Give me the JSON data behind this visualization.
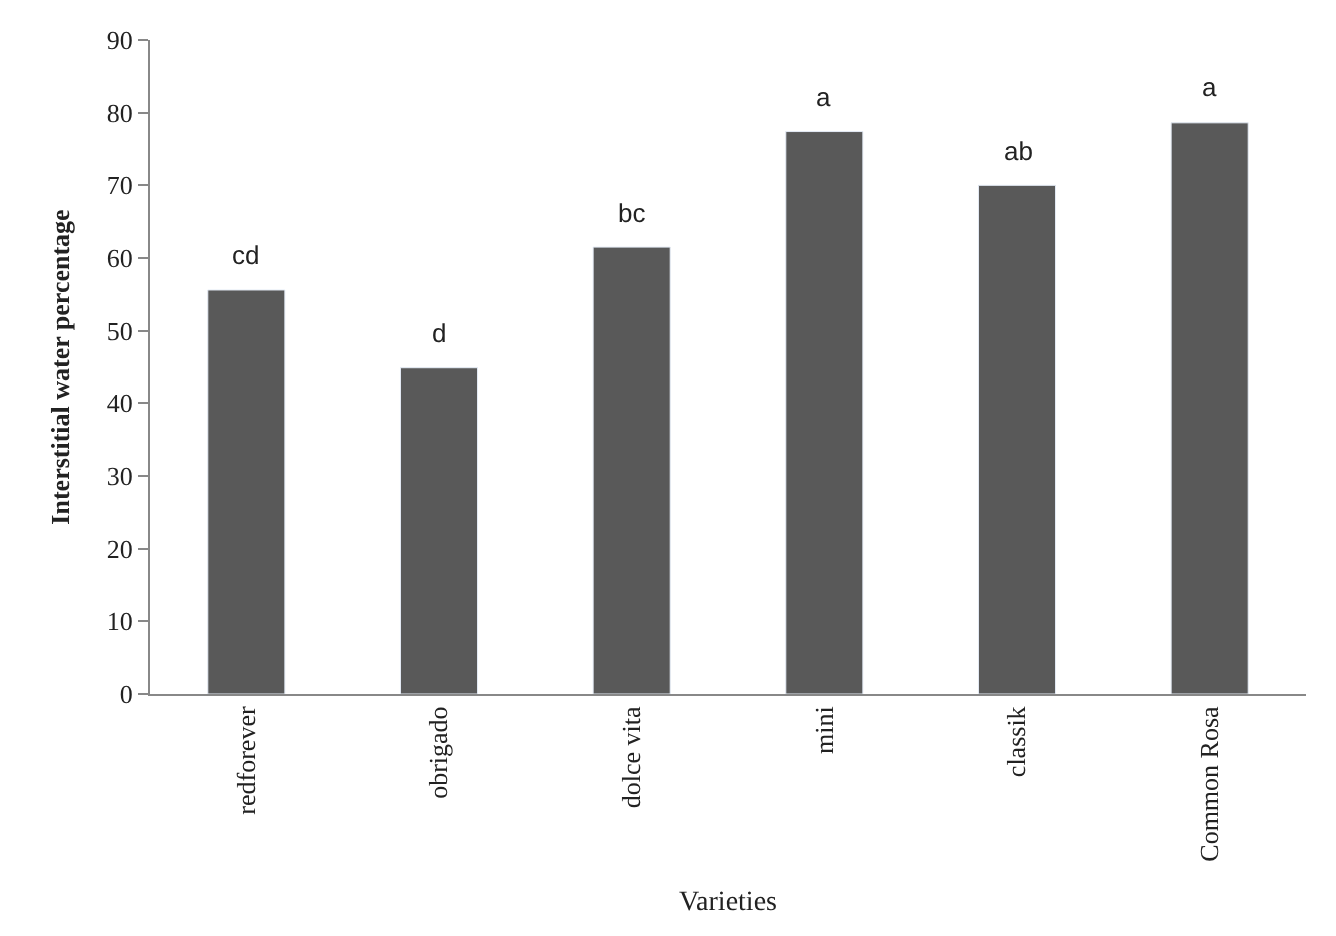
{
  "chart_data": {
    "type": "bar",
    "xlabel": "Varieties",
    "ylabel": "Interstitial water percentage",
    "categories": [
      "redforever",
      "obrigado",
      "dolce vita",
      "mini",
      "classik",
      "Common Rosa"
    ],
    "values": [
      55.6,
      44.9,
      61.5,
      77.4,
      70.0,
      78.6
    ],
    "color": "#595959",
    "ylim": [
      0,
      90
    ],
    "yticks": [
      0,
      10,
      20,
      30,
      40,
      50,
      60,
      70,
      80,
      90
    ],
    "annotations": [
      {
        "text": "cd",
        "x": "redforever",
        "y": 55.6
      },
      {
        "text": "d",
        "x": "obrigado",
        "y": 44.9
      },
      {
        "text": "bc",
        "x": "dolce vita",
        "y": 61.5
      },
      {
        "text": "a",
        "x": "mini",
        "y": 77.4
      },
      {
        "text": "ab",
        "x": "classik",
        "y": 70.0
      },
      {
        "text": "a",
        "x": "Common Rosa",
        "y": 78.6
      }
    ]
  }
}
